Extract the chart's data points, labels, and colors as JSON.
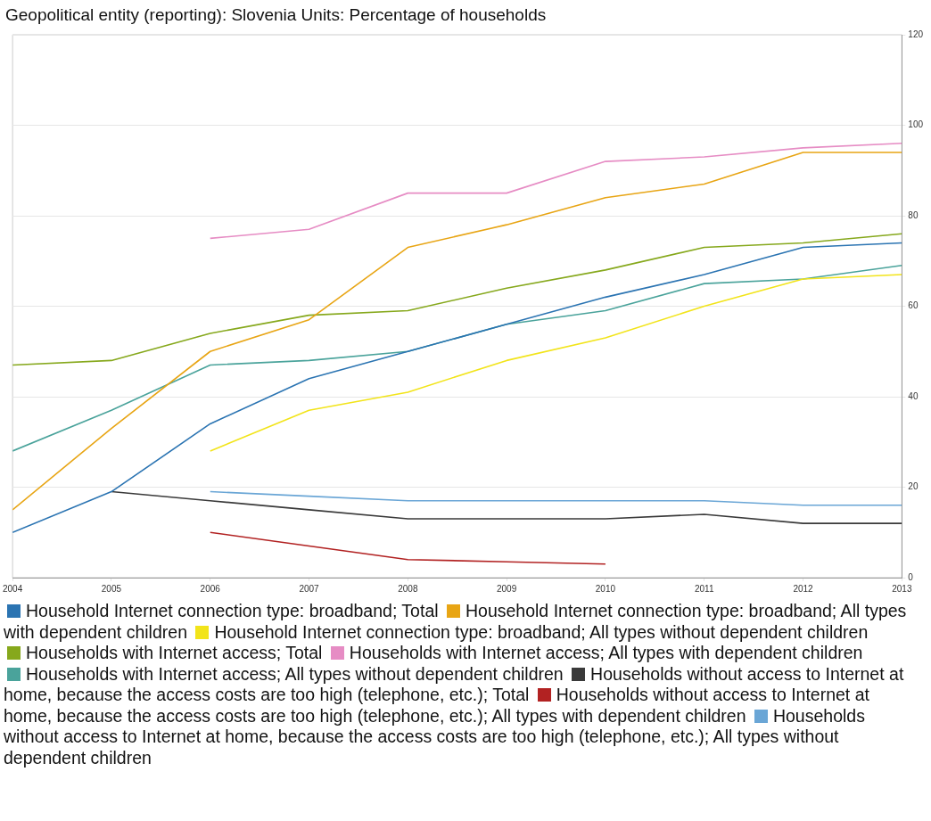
{
  "chart_data": {
    "type": "line",
    "title": "Geopolitical entity (reporting): Slovenia  Units: Percentage of households",
    "x": [
      2004,
      2005,
      2006,
      2007,
      2008,
      2009,
      2010,
      2011,
      2012,
      2013
    ],
    "xlim": [
      2004,
      2013
    ],
    "xticks": [
      2004,
      2005,
      2006,
      2007,
      2008,
      2009,
      2010,
      2011,
      2012,
      2013
    ],
    "ylim": [
      0,
      120
    ],
    "yticks": [
      0,
      20,
      40,
      60,
      80,
      100,
      120
    ],
    "grid": "y",
    "legend": "bottom",
    "marker": "none",
    "line_style": "solid",
    "series": [
      {
        "name": "Household Internet connection type: broadband; Total",
        "color": "#2b74b2",
        "values": [
          10,
          19,
          34,
          44,
          50,
          56,
          62,
          67,
          73,
          74
        ]
      },
      {
        "name": "Household Internet connection type: broadband; All types with dependent children",
        "color": "#e8a514",
        "values": [
          15,
          33,
          50,
          57,
          73,
          78,
          84,
          87,
          94,
          94
        ]
      },
      {
        "name": "Household Internet connection type: broadband; All types without dependent children",
        "color": "#f2e41a",
        "values": [
          null,
          null,
          28,
          37,
          41,
          48,
          53,
          60,
          66,
          67
        ]
      },
      {
        "name": "Households with Internet access; Total",
        "color": "#86a81c",
        "values": [
          47,
          48,
          54,
          58,
          59,
          64,
          68,
          73,
          74,
          76
        ]
      },
      {
        "name": "Households with Internet access; All types with dependent children",
        "color": "#e68cc4",
        "values": [
          null,
          null,
          75,
          77,
          85,
          85,
          92,
          93,
          95,
          96
        ]
      },
      {
        "name": "Households with Internet access; All types without dependent children",
        "color": "#4aa39b",
        "values": [
          28,
          37,
          47,
          48,
          50,
          56,
          59,
          65,
          66,
          69
        ]
      },
      {
        "name": "Households without access to Internet at home, because the access costs are too high (telephone, etc.); Total",
        "color": "#3a3a3a",
        "values": [
          null,
          19,
          17,
          15,
          13,
          13,
          13,
          14,
          12,
          12
        ]
      },
      {
        "name": "Households without access to Internet at home, because the access costs are too high (telephone, etc.); All types with dependent children",
        "color": "#b22222",
        "values": [
          null,
          null,
          10,
          7,
          4,
          3.5,
          3,
          null,
          null,
          null
        ]
      },
      {
        "name": "Households without access to Internet at home, because the access costs are too high (telephone, etc.); All types without dependent children",
        "color": "#6aa6d6",
        "values": [
          null,
          null,
          19,
          18,
          17,
          17,
          17,
          17,
          16,
          16
        ]
      }
    ]
  }
}
